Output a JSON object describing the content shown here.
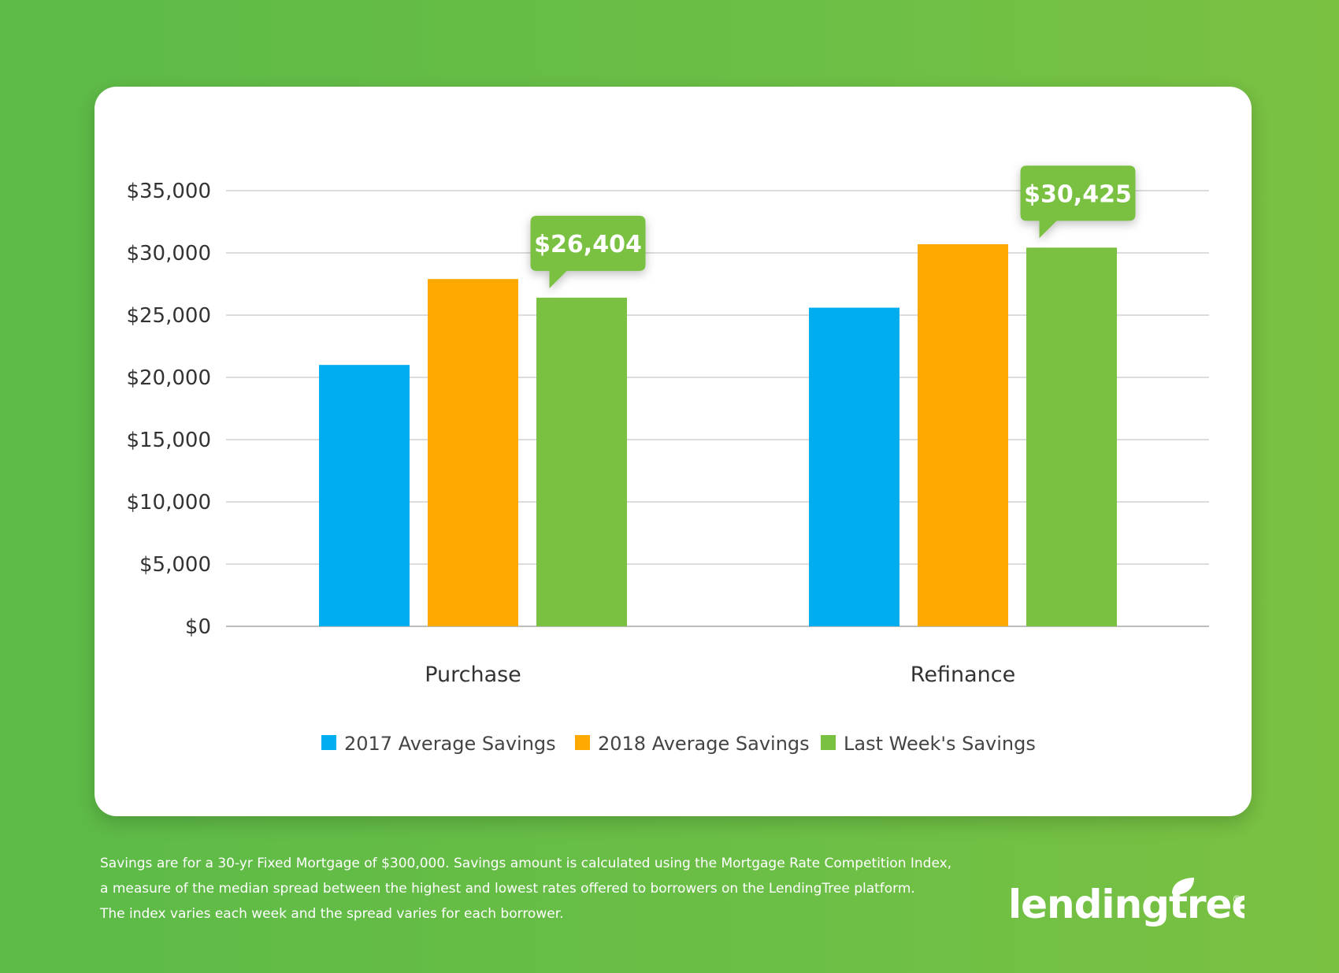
{
  "chart_data": {
    "type": "bar",
    "categories": [
      "Purchase",
      "Refinance"
    ],
    "series": [
      {
        "name": "2017 Average Savings",
        "color": "#00adef",
        "values": [
          21000,
          25600
        ]
      },
      {
        "name": "2018 Average Savings",
        "color": "#ffa900",
        "values": [
          27900,
          30700
        ]
      },
      {
        "name": "Last Week's Savings",
        "color": "#7ac142",
        "values": [
          26404,
          30425
        ]
      }
    ],
    "y_ticks": [
      "$0",
      "$5,000",
      "$10,000",
      "$15,000",
      "$20,000",
      "$25,000",
      "$30,000",
      "$35,000"
    ],
    "ylim": [
      0,
      35000
    ],
    "y_tick_step": 5000,
    "callouts": [
      "$26,404",
      "$30,425"
    ],
    "grid": true,
    "legend_position": "bottom"
  },
  "footnote": {
    "lines": [
      "Savings are for a 30-yr Fixed Mortgage of $300,000. Savings amount is calculated using the Mortgage Rate Competition Index,",
      "a measure of the median spread between the highest and lowest rates offered to borrowers on the LendingTree platform.",
      "The index varies each week and the spread varies for each borrower."
    ]
  },
  "brand": {
    "logo_text": "lendingtree",
    "registered_mark": "®"
  }
}
